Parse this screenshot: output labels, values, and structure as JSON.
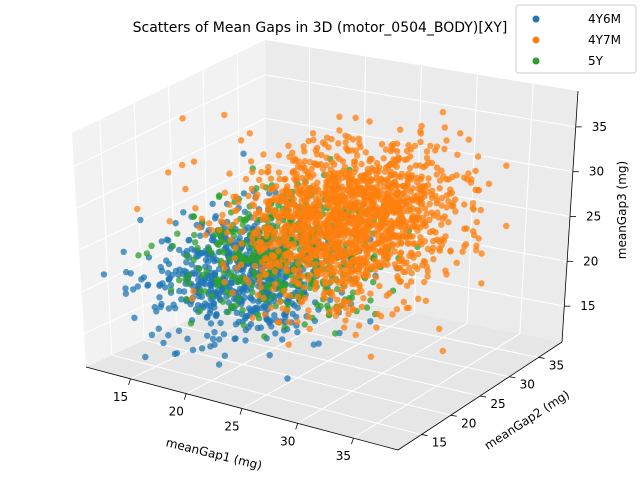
{
  "chart_data": {
    "type": "scatter",
    "title": "Scatters of Mean Gaps in 3D (motor_0504_BODY)[XY]",
    "xlabel": "meanGap1 (mg)",
    "ylabel": "meanGap2 (mg)",
    "zlabel": "meanGap3 (mg)",
    "xticks": [
      "15",
      "20",
      "25",
      "30",
      "35"
    ],
    "yticks": [
      "15",
      "20",
      "25",
      "30",
      "35"
    ],
    "zticks": [
      "15",
      "20",
      "25",
      "30",
      "35"
    ],
    "xlim": [
      11,
      39
    ],
    "ylim": [
      11,
      39
    ],
    "zlim": [
      11,
      39
    ],
    "grid": true,
    "legend_position": "top-right",
    "series": [
      {
        "name": "4Y6M",
        "color": "#1f77b4",
        "center": [
          19,
          22,
          20
        ],
        "spread": [
          3.5,
          4.5,
          3.0
        ],
        "count": 700
      },
      {
        "name": "4Y7M",
        "color": "#ff7f0e",
        "center": [
          26,
          27,
          26
        ],
        "spread": [
          4.0,
          5.5,
          3.5
        ],
        "count": 1600
      },
      {
        "name": "5Y",
        "color": "#2ca02c",
        "center": [
          22,
          24,
          23
        ],
        "spread": [
          3.5,
          4.5,
          3.0
        ],
        "count": 500
      }
    ],
    "draw_order": [
      "4Y6M",
      "5Y",
      "4Y7M"
    ]
  }
}
